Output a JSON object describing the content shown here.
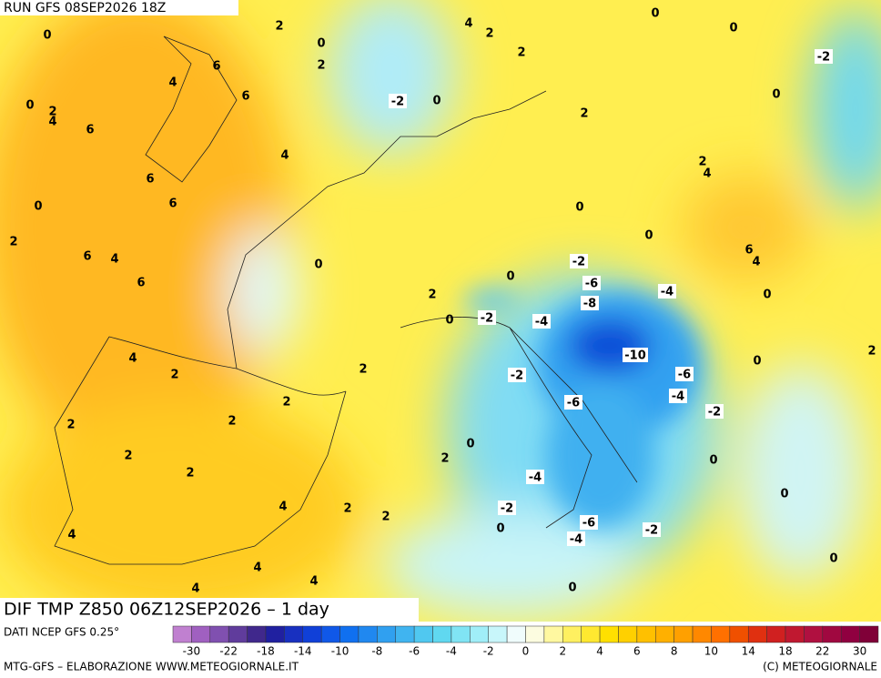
{
  "header": {
    "run": "RUN GFS 08SEP2026 18Z",
    "title": "DIF TMP Z850 06Z12SEP2026 – 1 day",
    "source": "DATI NCEP GFS 0.25°",
    "credit": "MTG-GFS – ELABORAZIONE WWW.METEOGIORNALE.IT",
    "copyright": "(C) METEOGIORNALE"
  },
  "contour_labels": [
    0,
    2,
    4,
    2,
    0,
    0,
    -2,
    0,
    2,
    6,
    2,
    4,
    6,
    -2,
    0,
    0,
    0,
    2,
    4,
    6,
    2,
    4,
    2,
    4,
    6,
    6,
    0,
    0,
    2,
    0,
    6,
    4,
    6,
    4,
    -2,
    0,
    0,
    -6,
    6,
    -4,
    2,
    0,
    -8,
    0,
    -2,
    -4,
    -10,
    4,
    0,
    2,
    2,
    -2,
    2,
    -6,
    2,
    -6,
    -4,
    -2,
    2,
    2,
    0,
    2,
    2,
    0,
    2,
    -4,
    0,
    4,
    2,
    -2,
    2,
    -6,
    0,
    -2,
    4,
    -4,
    0,
    4,
    4,
    4,
    0
  ],
  "colorbar": {
    "ticks": [
      -30,
      -22,
      -18,
      -14,
      -10,
      -8,
      -6,
      -4,
      -2,
      0,
      2,
      4,
      6,
      8,
      10,
      14,
      18,
      22,
      30
    ],
    "colors": [
      "#c080d0",
      "#a060c0",
      "#8050b0",
      "#603c9c",
      "#40288c",
      "#2020a0",
      "#1830c0",
      "#1040d8",
      "#1058e8",
      "#1070f0",
      "#2088f0",
      "#30a0f0",
      "#40b4f0",
      "#50c8f0",
      "#60d8f0",
      "#80e4f4",
      "#a0eef8",
      "#c8f6fa",
      "#f0fcfc",
      "#fcfce0",
      "#fff8a0",
      "#fff060",
      "#ffe830",
      "#ffe000",
      "#ffd000",
      "#ffc000",
      "#ffb000",
      "#ffa000",
      "#ff8800",
      "#ff7000",
      "#f05000",
      "#e03010",
      "#d02020",
      "#c01830",
      "#b01040",
      "#a00840",
      "#900040",
      "#800038"
    ]
  }
}
